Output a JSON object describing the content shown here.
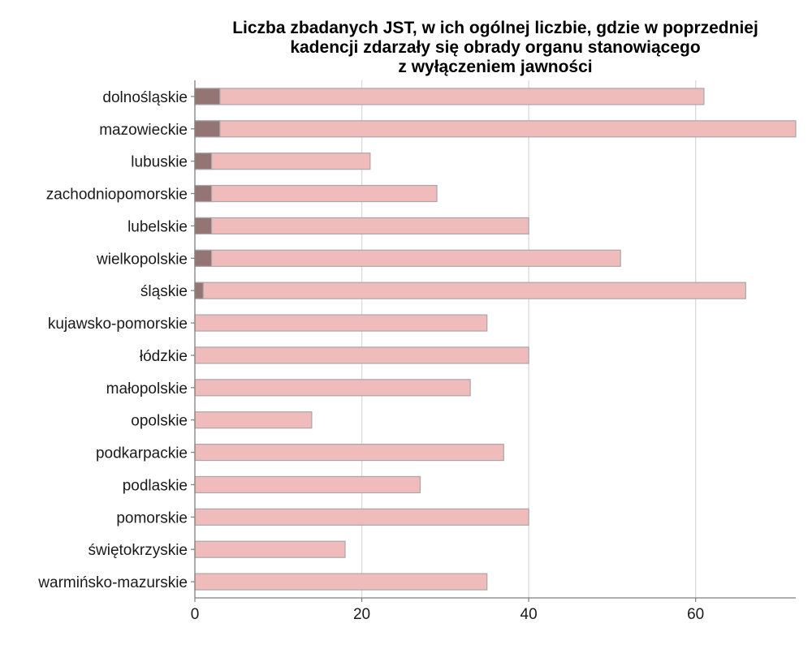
{
  "chart_data": {
    "type": "bar",
    "orientation": "horizontal",
    "stacked": true,
    "title": [
      "Liczba zbadanych JST, w ich ogólnej liczbie, gdzie w poprzedniej",
      "kadencji zdarzały się obrady organu stanowiącego",
      "z wyłączeniem jawności"
    ],
    "xlabel": "",
    "ylabel": "",
    "xlim": [
      0,
      72
    ],
    "xticks": [
      0,
      20,
      40,
      60
    ],
    "grid": "vertical",
    "legend": "none",
    "categories": [
      "dolnośląskie",
      "mazowieckie",
      "lubuskie",
      "zachodniopomorskie",
      "lubelskie",
      "wielkopolskie",
      "śląskie",
      "kujawsko-pomorskie",
      "łódzkie",
      "małopolskie",
      "opolskie",
      "podkarpackie",
      "podlaskie",
      "pomorskie",
      "świętokrzyskie",
      "warmińsko-mazurskie"
    ],
    "series": [
      {
        "role": "highlight",
        "color": "#957474",
        "values": [
          3,
          3,
          2,
          2,
          2,
          2,
          1,
          0,
          0,
          0,
          0,
          0,
          0,
          0,
          0,
          0
        ]
      },
      {
        "role": "total",
        "color": "#efbbbb",
        "values": [
          61,
          72,
          21,
          29,
          40,
          51,
          66,
          35,
          40,
          33,
          14,
          37,
          27,
          40,
          18,
          35
        ]
      }
    ],
    "colors": {
      "bar_stroke": "#a8a8a8",
      "grid": "#d9d9d9",
      "axis": "#7f7f7f"
    }
  }
}
